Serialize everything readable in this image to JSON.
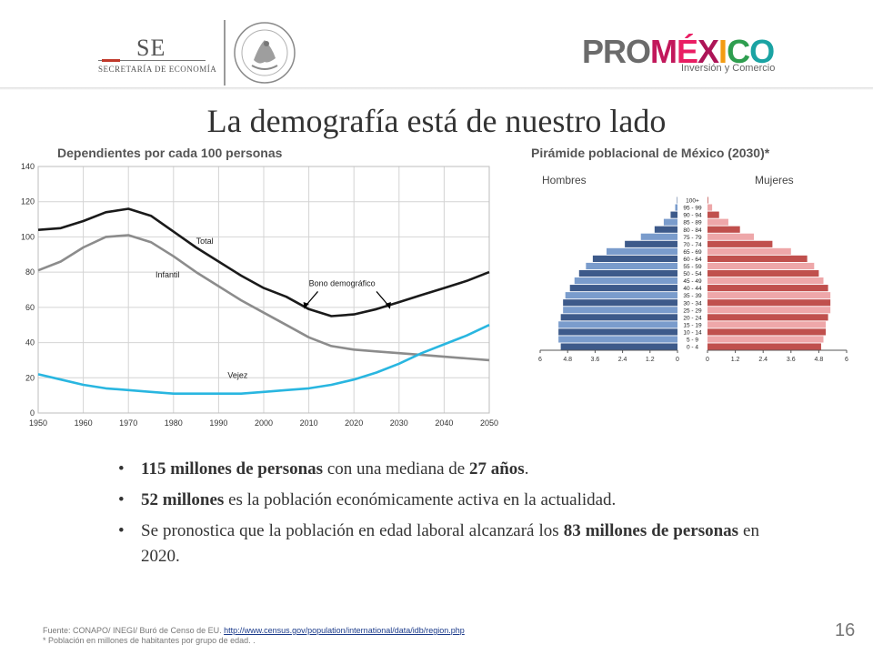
{
  "header": {
    "se_title": "SE",
    "se_subtitle": "SECRETARÍA DE ECONOMÍA",
    "brand": {
      "pro": "PRO",
      "m": "M",
      "e": "É",
      "x": "X",
      "i": "I",
      "c": "C",
      "o": "O"
    },
    "brand_subtitle": "Inversión y Comercio"
  },
  "slide": {
    "title": "La demografía está de nuestro lado",
    "left_subtitle": "Dependientes por cada 100 personas",
    "right_subtitle": "Pirámide poblacional de México (2030)*",
    "page_number": "16"
  },
  "chart_data": [
    {
      "type": "line",
      "x": [
        1950,
        1955,
        1960,
        1965,
        1970,
        1975,
        1980,
        1985,
        1990,
        1995,
        2000,
        2005,
        2010,
        2015,
        2020,
        2025,
        2030,
        2035,
        2040,
        2045,
        2050
      ],
      "series": [
        {
          "name": "Total",
          "color": "#1a1a1a",
          "values": [
            104,
            105,
            109,
            114,
            116,
            112,
            103,
            94,
            86,
            78,
            71,
            66,
            59,
            55,
            56,
            59,
            63,
            67,
            71,
            75,
            80
          ]
        },
        {
          "name": "Infantil",
          "color": "#8c8c8c",
          "values": [
            81,
            86,
            94,
            100,
            101,
            97,
            89,
            80,
            72,
            64,
            57,
            50,
            43,
            38,
            36,
            35,
            34,
            33,
            32,
            31,
            30
          ]
        },
        {
          "name": "Vejez",
          "color": "#29b6e0",
          "values": [
            22,
            19,
            16,
            14,
            13,
            12,
            11,
            11,
            11,
            11,
            12,
            13,
            14,
            16,
            19,
            23,
            28,
            34,
            39,
            44,
            50
          ]
        }
      ],
      "annotations": [
        "Bono demográfico"
      ],
      "xticks": [
        1950,
        1960,
        1970,
        1980,
        1990,
        2000,
        2010,
        2020,
        2030,
        2040,
        2050
      ],
      "yticks": [
        0,
        20,
        40,
        60,
        80,
        100,
        120,
        140
      ],
      "xlim": [
        1950,
        2050
      ],
      "ylim": [
        0,
        140
      ],
      "grid": true
    },
    {
      "type": "bar",
      "legend": [
        "Hombres",
        "Mujeres"
      ],
      "categories": [
        "100+",
        "95 - 99",
        "90 - 94",
        "85 - 89",
        "80 - 84",
        "75 - 79",
        "70 - 74",
        "65 - 69",
        "60 - 64",
        "55 - 59",
        "50 - 54",
        "45 - 49",
        "40 - 44",
        "35 - 39",
        "30 - 34",
        "25 - 29",
        "20 - 24",
        "15 - 19",
        "10 - 14",
        "5 - 9",
        "0 - 4"
      ],
      "series": [
        {
          "name": "Hombres",
          "color": "#3d5a8a",
          "values": [
            0.02,
            0.1,
            0.3,
            0.6,
            1.0,
            1.6,
            2.3,
            3.1,
            3.7,
            4.0,
            4.3,
            4.5,
            4.7,
            4.9,
            5.0,
            5.0,
            5.1,
            5.2,
            5.2,
            5.2,
            5.1
          ]
        },
        {
          "name": "Mujeres",
          "color": "#c0504d",
          "values": [
            0.03,
            0.2,
            0.5,
            0.9,
            1.4,
            2.0,
            2.8,
            3.6,
            4.3,
            4.6,
            4.8,
            5.0,
            5.2,
            5.3,
            5.3,
            5.3,
            5.2,
            5.1,
            5.1,
            5.0,
            4.9
          ]
        }
      ],
      "xticks": [
        "6",
        "4.8",
        "3.6",
        "2.4",
        "1.2",
        "0",
        "0",
        "1.2",
        "2.4",
        "3.6",
        "4.8",
        "6"
      ],
      "xlim": [
        0,
        6
      ]
    }
  ],
  "footer": {
    "source_prefix": "Fuente: CONAPO/ INEGI/ Buró de Censo de EU. ",
    "source_link": "http://www.census.gov/population/international/data/idb/region.php",
    "note": "* Población en millones de habitantes por grupo de edad. ."
  },
  "bullets": {
    "b1": {
      "p1": "115 millones de personas",
      "p2": " con una mediana de ",
      "p3": "27 años",
      "p4": "."
    },
    "b2": {
      "p1": "52 millones",
      "p2": " es la población económicamente activa en la actualidad."
    },
    "b3": {
      "p1": "Se pronostica que la población en edad laboral alcanzará los ",
      "p2": "83 millones de personas",
      "p3": " en 2020."
    }
  }
}
